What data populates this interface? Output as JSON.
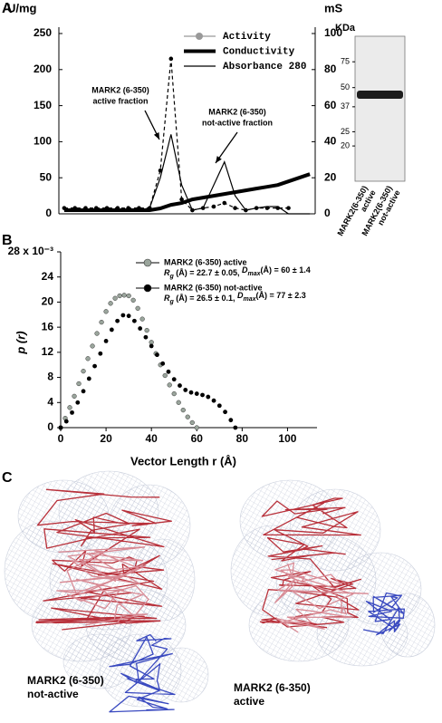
{
  "chart_data": [
    {
      "type": "line",
      "panel": "A",
      "categories": [
        null,
        null,
        null,
        null,
        null,
        null,
        null,
        null,
        null,
        null,
        null,
        null,
        null,
        null,
        null,
        null,
        null,
        null,
        null,
        null,
        null,
        null,
        null,
        null
      ],
      "ylabel": "U/mg",
      "y2label": "mS",
      "ylim": [
        0,
        250
      ],
      "yticks": [
        0,
        50,
        100,
        150,
        200,
        250
      ],
      "y2lim": [
        0,
        100
      ],
      "y2ticks": [
        0,
        20,
        40,
        60,
        80,
        100
      ],
      "series": [
        {
          "name": "Activity",
          "color": "#000000",
          "legend_color": "#999999",
          "dash": true,
          "marker": "circle",
          "values": [
            8,
            8,
            8,
            8,
            8,
            8,
            8,
            8,
            8,
            60,
            215,
            20,
            5,
            8,
            10,
            15,
            8,
            5,
            8,
            8,
            8,
            8,
            null,
            null
          ]
        },
        {
          "name": "Conductivity",
          "color": "#000000",
          "width": 4,
          "axis": "y2",
          "values": [
            2,
            2,
            2,
            2,
            2,
            2,
            2,
            2,
            2,
            3,
            5,
            6,
            8,
            9,
            10,
            11,
            12,
            13,
            14,
            15,
            16,
            18,
            20,
            22
          ]
        },
        {
          "name": "Absorbance 280",
          "color": "#000000",
          "width": 1.2,
          "values": [
            5,
            5,
            5,
            5,
            5,
            5,
            5,
            5,
            8,
            50,
            110,
            40,
            5,
            8,
            40,
            72,
            25,
            5,
            8,
            10,
            10,
            0,
            0,
            0
          ]
        }
      ],
      "annotations": [
        {
          "lines": [
            "MARK2 (6-350)",
            "active fraction"
          ]
        },
        {
          "lines": [
            "MARK2 (6-350)",
            "not-active fraction"
          ]
        }
      ]
    },
    {
      "type": "gel",
      "ylabel": "KDa",
      "log": true,
      "ylim": [
        11.5,
        112
      ],
      "yticks": [
        75,
        50,
        37,
        25,
        20
      ],
      "lanes": [
        [
          "MARK2(6-350)",
          "active"
        ],
        [
          "MARK2(6-350)",
          "not-active"
        ]
      ]
    },
    {
      "type": "scatter",
      "panel": "B",
      "ylabel": "p (r)",
      "xlabel": "Vector Length r (Å)",
      "xlim": [
        0,
        113
      ],
      "xticks": [
        0,
        20,
        40,
        60,
        80,
        100
      ],
      "ylim": [
        0,
        28
      ],
      "yticks": [
        0,
        4,
        8,
        12,
        16,
        20,
        24,
        {
          "value": 28,
          "label": "28 x 10⁻³"
        }
      ],
      "series": [
        {
          "name": "MARK2 (6-350) active",
          "color": "#9aa59c",
          "stats": [
            "R",
            "g",
            " (Å) = 22.7 ± 0.05, ",
            "D",
            "max",
            "(Å) = 60 ± 1.4"
          ],
          "x": [
            0,
            2,
            4,
            6,
            8,
            10,
            12,
            14,
            16,
            18,
            20,
            22,
            24,
            26,
            28,
            30,
            32,
            34,
            36,
            38,
            40,
            42,
            44,
            46,
            48,
            50,
            52,
            54,
            56,
            58,
            60
          ],
          "values": [
            0,
            1.5,
            3.2,
            5,
            7,
            9,
            11,
            13,
            15,
            16.8,
            18.5,
            19.8,
            20.6,
            21,
            21.1,
            21,
            20.3,
            19,
            17.3,
            15.5,
            13.6,
            11.8,
            10,
            8.3,
            6.8,
            5.4,
            4,
            2.8,
            1.7,
            0.8,
            0
          ]
        },
        {
          "name": "MARK2 (6-350) not-active",
          "color": "#000000",
          "stats": [
            "R",
            "g",
            " (Å) = 26.5 ± 0.1, ",
            "D",
            "max",
            "(Å) = 77 ±  2.3"
          ],
          "x": [
            0,
            2.5,
            5,
            7.5,
            10,
            12.5,
            15,
            17.5,
            20,
            22.5,
            25,
            27.5,
            30,
            32.5,
            35,
            37.5,
            40,
            42.5,
            45,
            47.5,
            50,
            52.5,
            55,
            57.5,
            60,
            62.5,
            65,
            67.5,
            70,
            72.5,
            75,
            77
          ],
          "values": [
            0,
            1,
            2.4,
            4,
            5.8,
            7.8,
            9.8,
            11.8,
            13.8,
            15.6,
            17,
            17.9,
            17.8,
            17,
            15.8,
            14.4,
            13,
            11.6,
            10.2,
            8.9,
            7.7,
            6.7,
            6,
            5.6,
            5.4,
            5.2,
            4.9,
            4.3,
            3.5,
            2.5,
            1.2,
            0
          ]
        }
      ]
    }
  ],
  "figure_c": {
    "panel": "C",
    "labels": [
      [
        "MARK2 (6-350)",
        "not-active"
      ],
      [
        "MARK2 (6-350)",
        "active"
      ]
    ]
  }
}
